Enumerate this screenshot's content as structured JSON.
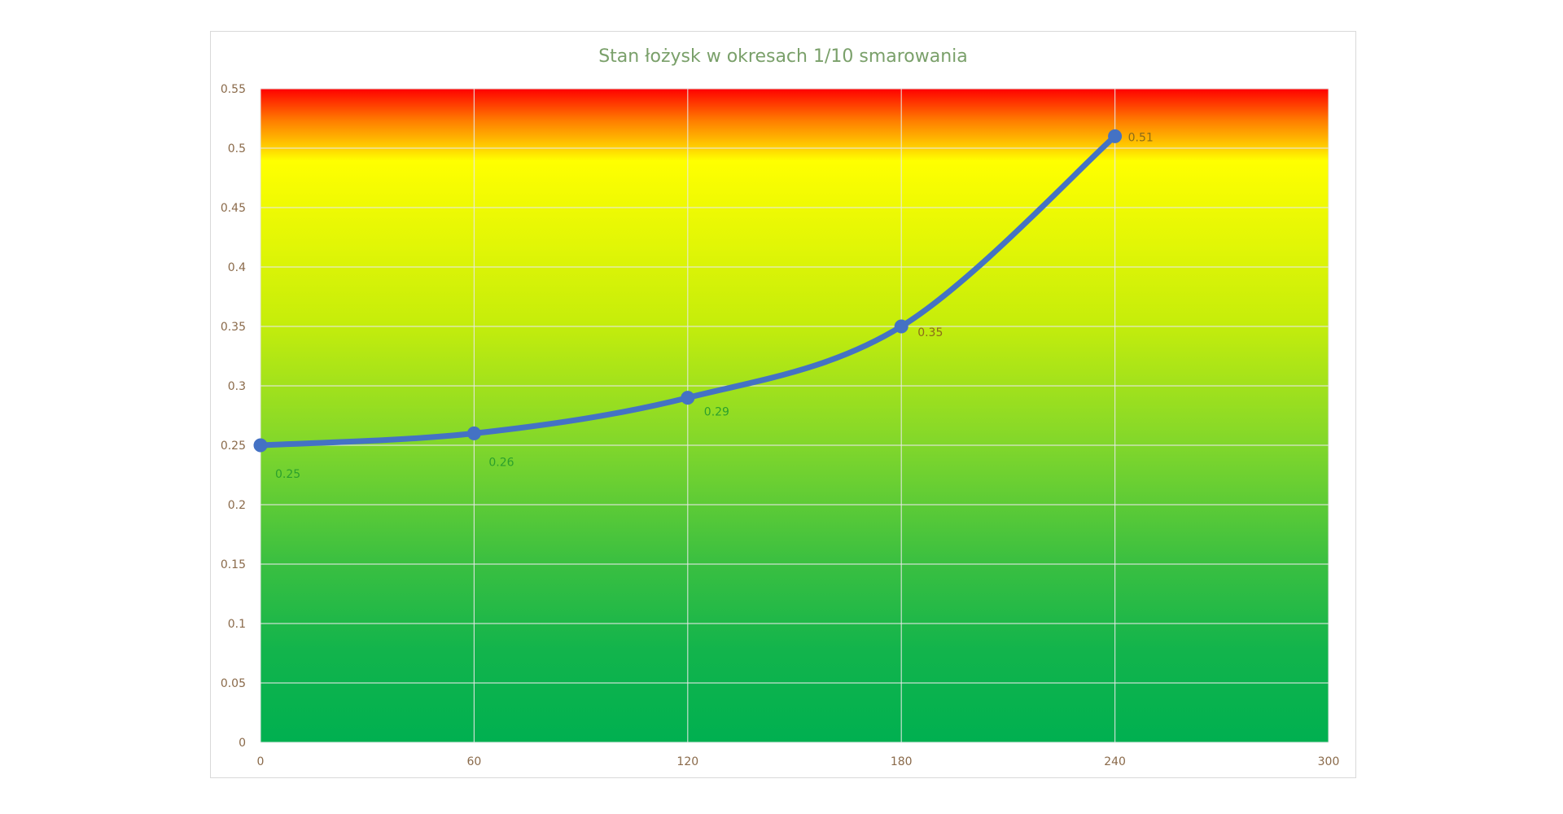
{
  "chart_data": {
    "type": "line",
    "title": "Stan łożysk w okresach 1/10 smarowania",
    "xlabel": "",
    "ylabel": "",
    "xlim": [
      0,
      300
    ],
    "ylim": [
      0,
      0.55
    ],
    "x_ticks": [
      "0",
      "60",
      "120",
      "180",
      "240",
      "300"
    ],
    "y_ticks": [
      "0",
      "0.05",
      "0.1",
      "0.15",
      "0.2",
      "0.25",
      "0.3",
      "0.35",
      "0.4",
      "0.45",
      "0.5",
      "0.55"
    ],
    "grid": true,
    "legend": "none",
    "smooth": true,
    "series": [
      {
        "x": [
          0,
          60,
          120,
          180,
          240
        ],
        "values": [
          0.25,
          0.26,
          0.29,
          0.35,
          0.51
        ],
        "labels": [
          "0.25",
          "0.26",
          "0.29",
          "0.35",
          "0.51"
        ],
        "color": "#4472c4"
      }
    ],
    "background_gradient": [
      "#ff0000",
      "#ffc000",
      "#ffff00",
      "#92d050",
      "#00b050"
    ],
    "label_colors": {
      "low": "#2ca02c",
      "mid": "#8b6b1a",
      "high": "#7a5a2a"
    }
  }
}
